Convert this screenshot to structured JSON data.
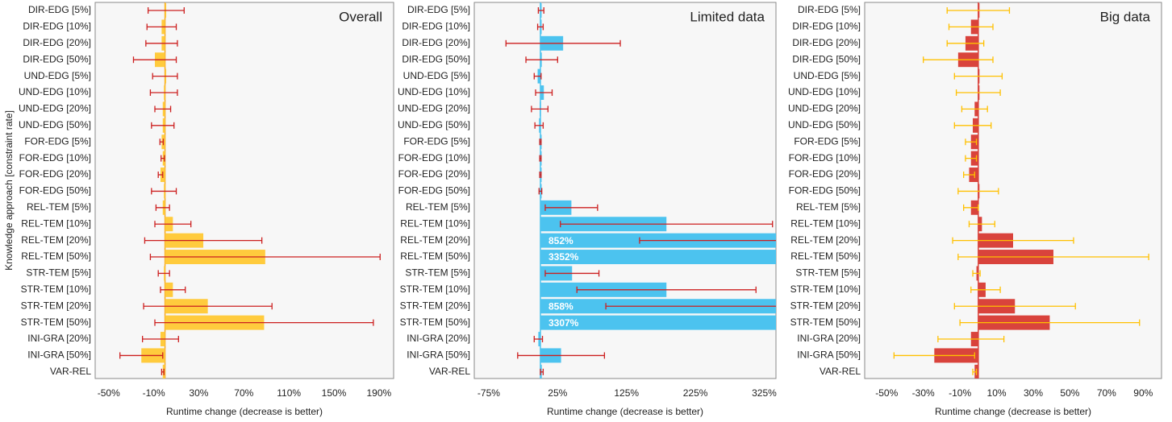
{
  "chart_data": [
    {
      "type": "bar",
      "orientation": "horizontal",
      "title": "Overall",
      "y_label": "Knowledge approach [constraint rate]",
      "x_label": "Runtime change (decrease is better)",
      "categories": [
        "DIR-EDG [5%]",
        "DIR-EDG [10%]",
        "DIR-EDG [20%]",
        "DIR-EDG [50%]",
        "UND-EDG [5%]",
        "UND-EDG [10%]",
        "UND-EDG [20%]",
        "UND-EDG [50%]",
        "FOR-EDG [5%]",
        "FOR-EDG [10%]",
        "FOR-EDG [20%]",
        "FOR-EDG [50%]",
        "REL-TEM [5%]",
        "REL-TEM [10%]",
        "REL-TEM [20%]",
        "REL-TEM [50%]",
        "STR-TEM [5%]",
        "STR-TEM [10%]",
        "STR-TEM [20%]",
        "STR-TEM [50%]",
        "INI-GRA [20%]",
        "INI-GRA [50%]",
        "VAR-REL"
      ],
      "values": [
        1,
        -3,
        -3,
        -9,
        0,
        -1,
        -2,
        -2,
        -3,
        -2,
        -4,
        -1,
        -2,
        7,
        34,
        89,
        -1,
        7,
        38,
        88,
        -4,
        -21,
        -2
      ],
      "errors": [
        16,
        13,
        14,
        19,
        11,
        12,
        7,
        10,
        1.5,
        1.5,
        2,
        11,
        6,
        16,
        52,
        102,
        5,
        11,
        57,
        97,
        16,
        19,
        1
      ],
      "color": "#ffcb3d",
      "error_color": "#cc1f1f",
      "zero_line_color": "#f5a623",
      "xlim": [
        -62,
        203
      ],
      "xticks": [
        {
          "value": -50,
          "label": "-50%"
        },
        {
          "value": -10,
          "label": "-10%"
        },
        {
          "value": 30,
          "label": "30%"
        },
        {
          "value": 70,
          "label": "70%"
        },
        {
          "value": 110,
          "label": "110%"
        },
        {
          "value": 150,
          "label": "150%"
        },
        {
          "value": 190,
          "label": "190%"
        }
      ]
    },
    {
      "type": "bar",
      "orientation": "horizontal",
      "title": "Limited data",
      "x_label": "Runtime change (decrease is better)",
      "categories": [
        "DIR-EDG [5%]",
        "DIR-EDG [10%]",
        "DIR-EDG [20%]",
        "DIR-EDG [50%]",
        "UND-EDG [5%]",
        "UND-EDG [10%]",
        "UND-EDG [20%]",
        "UND-EDG [50%]",
        "FOR-EDG [5%]",
        "FOR-EDG [10%]",
        "FOR-EDG [20%]",
        "FOR-EDG [50%]",
        "REL-TEM [5%]",
        "REL-TEM [10%]",
        "REL-TEM [20%]",
        "REL-TEM [50%]",
        "STR-TEM [5%]",
        "STR-TEM [10%]",
        "STR-TEM [20%]",
        "STR-TEM [50%]",
        "INI-GRA [20%]",
        "INI-GRA [50%]",
        "VAR-REL"
      ],
      "values": [
        1,
        0,
        33,
        2,
        -4,
        5,
        -1,
        -2,
        0,
        0,
        0,
        0,
        45,
        183,
        852,
        3352,
        46,
        183,
        858,
        3307,
        -3,
        30,
        2
      ],
      "value_labels": [
        null,
        null,
        null,
        null,
        null,
        null,
        null,
        null,
        null,
        null,
        null,
        null,
        null,
        null,
        "852%",
        "3352%",
        null,
        null,
        "858%",
        "3307%",
        null,
        null,
        null
      ],
      "errors": [
        4,
        4,
        83,
        23,
        5,
        12,
        12,
        6,
        1,
        1,
        1,
        2,
        38,
        154,
        708,
        null,
        39,
        130,
        763,
        null,
        6,
        63,
        2
      ],
      "color": "#4cc3ef",
      "error_color": "#cc1f1f",
      "zero_line_color": "#4cc3ef",
      "xlim": [
        -96,
        342
      ],
      "xticks": [
        {
          "value": -75,
          "label": "-75%"
        },
        {
          "value": 25,
          "label": "25%"
        },
        {
          "value": 125,
          "label": "125%"
        },
        {
          "value": 225,
          "label": "225%"
        },
        {
          "value": 325,
          "label": "325%"
        }
      ]
    },
    {
      "type": "bar",
      "orientation": "horizontal",
      "title": "Big data",
      "x_label": "Runtime change (decrease is better)",
      "categories": [
        "DIR-EDG [5%]",
        "DIR-EDG [10%]",
        "DIR-EDG [20%]",
        "DIR-EDG [50%]",
        "UND-EDG [5%]",
        "UND-EDG [10%]",
        "UND-EDG [20%]",
        "UND-EDG [50%]",
        "FOR-EDG [5%]",
        "FOR-EDG [10%]",
        "FOR-EDG [20%]",
        "FOR-EDG [50%]",
        "REL-TEM [5%]",
        "REL-TEM [10%]",
        "REL-TEM [20%]",
        "REL-TEM [50%]",
        "STR-TEM [5%]",
        "STR-TEM [10%]",
        "STR-TEM [20%]",
        "STR-TEM [50%]",
        "INI-GRA [20%]",
        "INI-GRA [50%]",
        "VAR-REL"
      ],
      "values": [
        0,
        -4,
        -7,
        -11,
        0,
        0,
        -2,
        -3,
        -4,
        -4,
        -5,
        0,
        -4,
        2,
        19,
        41,
        -1,
        4,
        20,
        39,
        -4,
        -24,
        -2
      ],
      "errors": [
        17,
        12,
        10,
        19,
        13,
        12,
        7,
        10,
        3,
        3,
        3,
        11,
        4,
        7,
        33,
        52,
        2,
        8,
        33,
        49,
        18,
        22,
        1
      ],
      "color": "#d9433c",
      "error_color": "#ffc000",
      "zero_line_color": "#d9433c",
      "xlim": [
        -62,
        100
      ],
      "xticks": [
        {
          "value": -50,
          "label": "-50%"
        },
        {
          "value": -30,
          "label": "-30%"
        },
        {
          "value": -10,
          "label": "-10%"
        },
        {
          "value": 10,
          "label": "10%"
        },
        {
          "value": 30,
          "label": "30%"
        },
        {
          "value": 50,
          "label": "50%"
        },
        {
          "value": 70,
          "label": "70%"
        },
        {
          "value": 90,
          "label": "90%"
        }
      ]
    }
  ]
}
